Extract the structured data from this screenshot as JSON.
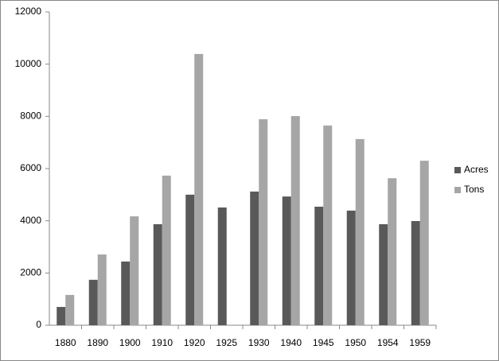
{
  "chart_data": {
    "type": "bar",
    "categories": [
      "1880",
      "1890",
      "1900",
      "1910",
      "1920",
      "1925",
      "1930",
      "1940",
      "1945",
      "1950",
      "1954",
      "1959"
    ],
    "series": [
      {
        "name": "Acres",
        "color": "#595959",
        "values": [
          700,
          1740,
          2440,
          3870,
          5000,
          4510,
          5120,
          4930,
          4540,
          4390,
          3870,
          3990
        ]
      },
      {
        "name": "Tons",
        "color": "#a6a6a6",
        "values": [
          1160,
          2710,
          4170,
          5730,
          10390,
          null,
          7890,
          8010,
          7650,
          7130,
          5630,
          6300
        ]
      }
    ],
    "ylim": [
      0,
      12000
    ],
    "yticks": [
      0,
      2000,
      4000,
      6000,
      8000,
      10000,
      12000
    ],
    "grid": false,
    "legend": "right"
  }
}
